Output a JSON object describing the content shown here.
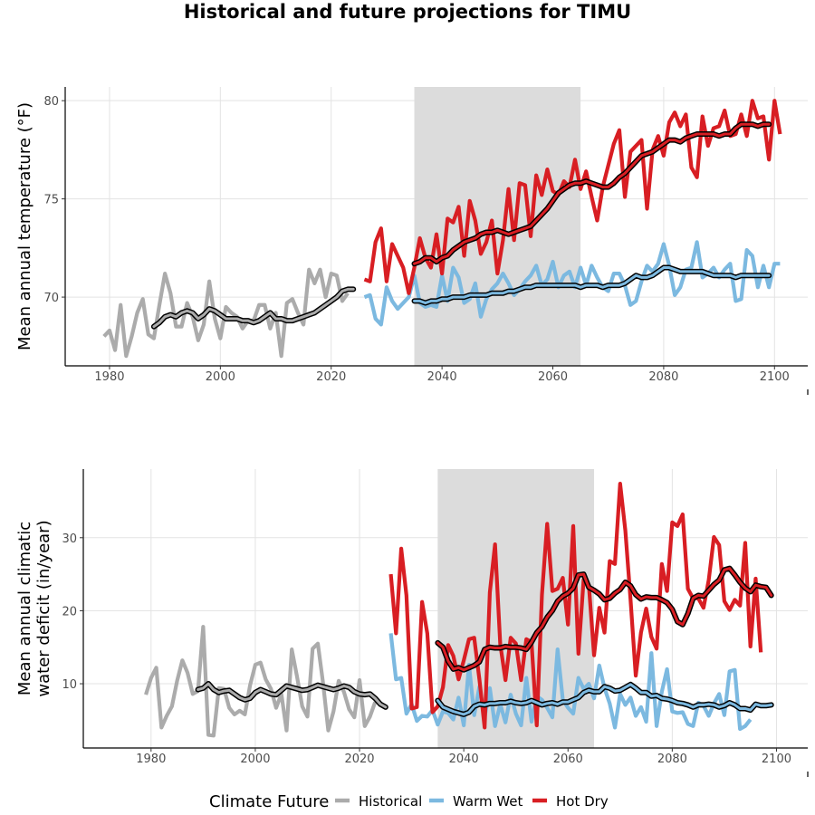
{
  "title": "Historical and future projections for TIMU",
  "legend": {
    "title": "Climate Future",
    "items": [
      {
        "label": "Historical",
        "color": "#ababab"
      },
      {
        "label": "Warm Wet",
        "color": "#7cb9e0"
      },
      {
        "label": "Hot Dry",
        "color": "#d81e23"
      }
    ]
  },
  "colors": {
    "historical": "#ababab",
    "warm_wet": "#7cb9e0",
    "hot_dry": "#d81e23",
    "smooth": "#000000",
    "band": "#dcdcdc"
  },
  "chart_data": [
    {
      "type": "line",
      "ylabel": "Mean annual temperature (°F)",
      "xlim": [
        1972,
        2106
      ],
      "ylim": [
        66.5,
        80.7
      ],
      "xticks": [
        1980,
        2000,
        2020,
        2040,
        2060,
        2080,
        2100
      ],
      "yticks": [
        70,
        75,
        80
      ],
      "band": [
        2035,
        2065
      ],
      "series": [
        {
          "name": "Historical",
          "x_start": 1979,
          "values": [
            68.0,
            68.3,
            67.3,
            69.6,
            67.0,
            68.0,
            69.2,
            69.9,
            68.1,
            67.9,
            69.6,
            71.2,
            70.2,
            68.5,
            68.5,
            69.7,
            69.0,
            67.8,
            68.6,
            70.8,
            68.9,
            67.9,
            69.5,
            69.2,
            69.0,
            68.4,
            68.8,
            68.8,
            69.6,
            69.6,
            68.4,
            69.2,
            67.0,
            69.7,
            69.9,
            69.2,
            68.6,
            71.4,
            70.7,
            71.4,
            70.0,
            71.2,
            71.1,
            69.8,
            70.2
          ],
          "smooth_x_start": 1988,
          "smooth": [
            68.5,
            68.7,
            69.0,
            69.1,
            69.0,
            69.2,
            69.3,
            69.2,
            68.9,
            69.1,
            69.4,
            69.3,
            69.1,
            68.9,
            68.9,
            68.9,
            68.8,
            68.8,
            68.7,
            68.8,
            69.0,
            69.2,
            68.9,
            68.9,
            68.8,
            68.8,
            68.9,
            69.0,
            69.1,
            69.2,
            69.4,
            69.6,
            69.8,
            70.0,
            70.3,
            70.4,
            70.4
          ]
        },
        {
          "name": "Warm Wet",
          "x_start": 2026,
          "values": [
            70.0,
            70.1,
            68.9,
            68.6,
            70.5,
            69.8,
            69.4,
            69.7,
            70.0,
            71.1,
            69.7,
            69.5,
            69.6,
            69.5,
            71.1,
            69.8,
            71.5,
            71.0,
            69.7,
            69.9,
            70.7,
            69.0,
            69.9,
            70.4,
            70.7,
            71.2,
            70.7,
            70.1,
            70.4,
            70.8,
            71.1,
            71.6,
            70.6,
            70.9,
            71.8,
            70.5,
            71.1,
            71.3,
            70.5,
            71.5,
            70.6,
            71.6,
            71.0,
            70.5,
            70.3,
            71.2,
            71.2,
            70.6,
            69.6,
            69.8,
            70.8,
            71.6,
            71.3,
            71.7,
            72.7,
            71.6,
            70.1,
            70.5,
            71.4,
            71.5,
            72.8,
            71.0,
            71.2,
            71.5,
            71.0,
            71.4,
            71.7,
            69.8,
            69.9,
            72.4,
            72.1,
            70.5,
            71.6,
            70.5,
            71.7,
            71.7
          ],
          "smooth_x_start": 2035,
          "smooth": [
            69.8,
            69.8,
            69.7,
            69.8,
            69.8,
            69.9,
            69.9,
            70.0,
            70.0,
            70.0,
            70.1,
            70.1,
            70.1,
            70.1,
            70.2,
            70.2,
            70.2,
            70.3,
            70.3,
            70.4,
            70.5,
            70.5,
            70.6,
            70.6,
            70.6,
            70.6,
            70.6,
            70.6,
            70.6,
            70.6,
            70.5,
            70.6,
            70.6,
            70.6,
            70.5,
            70.6,
            70.6,
            70.6,
            70.7,
            70.9,
            71.1,
            71.0,
            71.0,
            71.1,
            71.3,
            71.5,
            71.5,
            71.4,
            71.3,
            71.3,
            71.3,
            71.3,
            71.3,
            71.2,
            71.1,
            71.1,
            71.1,
            71.1,
            71.0,
            71.1,
            71.1,
            71.1,
            71.1,
            71.1,
            71.1
          ]
        },
        {
          "name": "Hot Dry",
          "x_start": 2026,
          "values": [
            70.9,
            70.8,
            72.8,
            73.5,
            70.8,
            72.7,
            72.1,
            71.5,
            70.2,
            71.5,
            73.0,
            72.0,
            71.5,
            73.2,
            71.2,
            74.0,
            73.8,
            74.6,
            72.1,
            74.9,
            73.9,
            72.2,
            72.8,
            73.9,
            71.2,
            72.9,
            75.5,
            72.9,
            75.8,
            75.7,
            73.1,
            76.2,
            75.2,
            76.5,
            75.4,
            75.2,
            75.9,
            75.6,
            77.0,
            75.5,
            76.4,
            75.1,
            73.9,
            75.6,
            76.7,
            77.8,
            78.5,
            75.1,
            77.4,
            77.7,
            78.0,
            74.5,
            77.5,
            78.2,
            77.2,
            78.9,
            79.4,
            78.7,
            79.3,
            76.6,
            76.1,
            79.2,
            77.7,
            78.6,
            78.7,
            79.5,
            78.2,
            78.3,
            79.3,
            78.2,
            80.0,
            79.1,
            79.2,
            77.0,
            80.0,
            78.3
          ],
          "smooth_x_start": 2035,
          "smooth": [
            71.7,
            71.8,
            72.0,
            72.0,
            71.8,
            72.0,
            72.1,
            72.4,
            72.6,
            72.8,
            72.9,
            73.0,
            73.2,
            73.3,
            73.3,
            73.4,
            73.3,
            73.2,
            73.3,
            73.4,
            73.5,
            73.6,
            73.9,
            74.2,
            74.5,
            74.9,
            75.3,
            75.5,
            75.7,
            75.8,
            75.8,
            75.9,
            75.8,
            75.7,
            75.6,
            75.6,
            75.8,
            76.1,
            76.3,
            76.6,
            76.9,
            77.2,
            77.3,
            77.4,
            77.6,
            77.8,
            78.0,
            78.0,
            77.9,
            78.1,
            78.2,
            78.3,
            78.3,
            78.3,
            78.3,
            78.2,
            78.3,
            78.3,
            78.6,
            78.8,
            78.8,
            78.8,
            78.7,
            78.8,
            78.8
          ]
        }
      ]
    },
    {
      "type": "line",
      "ylabel_lines": [
        "Mean annual climatic",
        "water deficit (in/year)"
      ],
      "xlim": [
        1967,
        2106
      ],
      "ylim": [
        1.2,
        39.4
      ],
      "xticks": [
        1980,
        2000,
        2020,
        2040,
        2060,
        2080,
        2100
      ],
      "yticks": [
        10,
        20,
        30
      ],
      "band": [
        2035,
        2065
      ],
      "series": [
        {
          "name": "Historical",
          "x_start": 1979,
          "values": [
            8.5,
            10.8,
            12.2,
            4.0,
            5.6,
            6.9,
            10.4,
            13.2,
            11.5,
            8.6,
            9.0,
            17.8,
            3.0,
            2.9,
            9.4,
            9.3,
            6.7,
            5.8,
            6.3,
            5.8,
            9.8,
            12.6,
            12.9,
            10.6,
            9.3,
            6.7,
            8.6,
            3.6,
            14.7,
            11.0,
            6.9,
            5.5,
            14.8,
            15.5,
            10.1,
            3.6,
            6.2,
            10.4,
            8.9,
            6.5,
            5.4,
            10.5,
            4.2,
            5.5,
            7.5
          ],
          "smooth_x_start": 1989,
          "smooth": [
            9.2,
            9.4,
            10.0,
            9.2,
            8.8,
            9.0,
            9.1,
            8.6,
            8.1,
            7.8,
            8.0,
            8.8,
            9.2,
            8.9,
            8.6,
            8.5,
            9.1,
            9.7,
            9.5,
            9.3,
            9.1,
            9.2,
            9.5,
            9.8,
            9.6,
            9.4,
            9.2,
            9.4,
            9.7,
            9.5,
            8.9,
            8.6,
            8.5,
            8.6,
            8.0,
            7.2,
            6.8
          ]
        },
        {
          "name": "Warm Wet",
          "x_start": 2026,
          "values": [
            16.9,
            10.6,
            10.8,
            5.9,
            7.2,
            4.9,
            5.6,
            5.5,
            6.4,
            4.4,
            6.2,
            6.0,
            5.1,
            8.1,
            4.3,
            12.6,
            5.7,
            9.6,
            5.4,
            9.4,
            4.2,
            7.2,
            4.7,
            8.5,
            5.9,
            4.3,
            10.8,
            4.8,
            8.3,
            7.8,
            6.7,
            5.4,
            14.7,
            7.8,
            6.7,
            5.9,
            10.8,
            9.3,
            10.0,
            8.0,
            12.5,
            9.4,
            7.3,
            4.0,
            8.6,
            7.1,
            8.1,
            5.6,
            6.8,
            4.8,
            14.2,
            4.2,
            8.9,
            12.0,
            6.2,
            6.0,
            6.1,
            4.5,
            4.2,
            7.4,
            7.0,
            5.6,
            7.3,
            8.6,
            5.7,
            11.7,
            11.9,
            3.8,
            4.2,
            5.1
          ],
          "smooth_x_start": 2035,
          "smooth": [
            7.7,
            6.8,
            6.5,
            6.2,
            6.0,
            5.8,
            6.1,
            6.9,
            7.2,
            7.1,
            7.3,
            7.3,
            7.4,
            7.4,
            7.6,
            7.4,
            7.3,
            7.4,
            7.7,
            7.4,
            7.1,
            7.3,
            7.4,
            7.2,
            7.5,
            7.5,
            7.8,
            8.1,
            8.8,
            9.1,
            8.9,
            8.9,
            9.6,
            9.4,
            9.0,
            9.1,
            9.5,
            9.9,
            9.4,
            8.8,
            8.8,
            8.3,
            8.4,
            8.0,
            7.9,
            7.7,
            7.4,
            7.3,
            7.1,
            6.8,
            7.1,
            7.1,
            7.2,
            7.1,
            6.8,
            7.0,
            7.4,
            7.1,
            6.6,
            6.6,
            6.4,
            7.2,
            7.0,
            7.0,
            7.1
          ]
        },
        {
          "name": "Hot Dry",
          "x_start": 2026,
          "values": [
            25.0,
            16.9,
            28.5,
            22.1,
            6.6,
            6.8,
            21.2,
            16.9,
            6.1,
            6.9,
            9.5,
            15.3,
            13.8,
            10.6,
            13.2,
            16.1,
            16.3,
            10.6,
            4.0,
            22.5,
            29.1,
            15.4,
            10.5,
            16.3,
            15.5,
            10.5,
            16.1,
            15.7,
            4.3,
            22.2,
            31.9,
            22.7,
            23.0,
            24.5,
            18.1,
            31.6,
            14.1,
            24.3,
            23.5,
            13.9,
            20.4,
            17.0,
            26.8,
            26.4,
            37.4,
            31.0,
            21.5,
            11.1,
            17.0,
            20.3,
            16.4,
            14.8,
            26.4,
            22.7,
            32.1,
            31.6,
            33.2,
            23.0,
            21.7,
            21.7,
            20.4,
            24.2,
            30.1,
            29.0,
            21.3,
            20.1,
            21.5,
            20.7,
            29.3,
            15.1,
            24.4,
            14.3
          ],
          "smooth_x_start": 2035,
          "smooth": [
            15.6,
            15.0,
            13.1,
            12.0,
            12.2,
            11.9,
            12.2,
            12.5,
            13.0,
            14.7,
            15.0,
            14.9,
            14.9,
            15.1,
            15.0,
            15.0,
            14.9,
            14.7,
            15.7,
            17.0,
            17.8,
            19.1,
            20.0,
            21.3,
            22.0,
            22.4,
            23.1,
            24.9,
            25.0,
            23.2,
            22.8,
            22.3,
            21.5,
            21.7,
            22.4,
            22.9,
            23.9,
            23.4,
            22.2,
            21.6,
            21.9,
            21.8,
            21.8,
            21.5,
            21.1,
            20.2,
            18.5,
            18.1,
            19.6,
            21.7,
            22.1,
            22.0,
            22.8,
            23.6,
            24.2,
            25.6,
            25.8,
            24.9,
            23.9,
            23.1,
            22.6,
            23.5,
            23.3,
            23.2,
            22.1
          ]
        }
      ]
    }
  ]
}
